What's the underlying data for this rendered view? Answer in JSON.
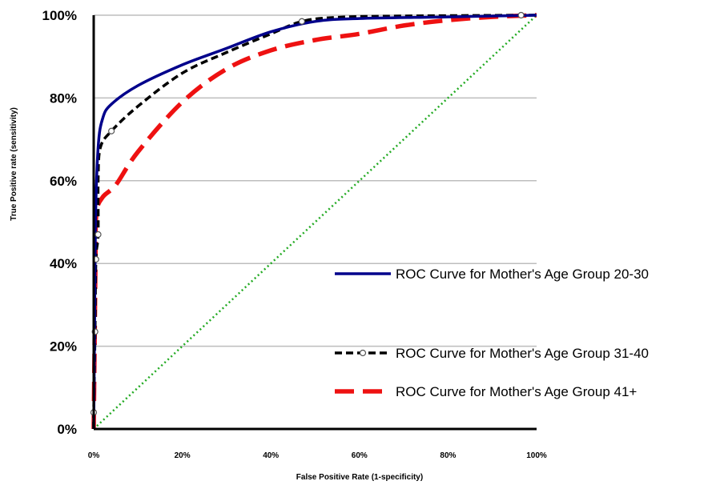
{
  "chart_data": {
    "type": "line",
    "xlabel": "False Positive Rate (1-specificity)",
    "ylabel": "True Positive rate (sensitivity)",
    "xlim": [
      0,
      100
    ],
    "ylim": [
      0,
      100
    ],
    "x_ticks": [
      "0%",
      "20%",
      "40%",
      "60%",
      "80%",
      "100%"
    ],
    "y_ticks": [
      "0%",
      "20%",
      "40%",
      "60%",
      "80%",
      "100%"
    ],
    "grid": "horizontal",
    "legend_position": "right",
    "series": [
      {
        "name": "ROC Curve for Mother's Age Group 20-30",
        "color": "#00008B",
        "style": "solid",
        "points": [
          [
            0,
            0
          ],
          [
            0.2,
            25
          ],
          [
            0.4,
            50
          ],
          [
            1,
            68
          ],
          [
            2,
            75
          ],
          [
            4,
            78.5
          ],
          [
            10,
            83
          ],
          [
            20,
            88
          ],
          [
            30,
            92
          ],
          [
            40,
            96
          ],
          [
            50,
            98.5
          ],
          [
            60,
            99.2
          ],
          [
            80,
            99.6
          ],
          [
            100,
            100
          ]
        ]
      },
      {
        "name": "ROC Curve for Mother's Age Group 31-40",
        "color": "#000000",
        "style": "short-dash",
        "markers": [
          [
            0,
            4
          ],
          [
            0.3,
            23.5
          ],
          [
            0.5,
            41
          ],
          [
            1,
            47
          ],
          [
            4,
            72
          ],
          [
            47,
            98.5
          ],
          [
            96.5,
            100
          ]
        ],
        "points": [
          [
            0,
            0
          ],
          [
            0,
            4
          ],
          [
            0.3,
            23.5
          ],
          [
            0.5,
            41
          ],
          [
            1,
            47
          ],
          [
            1,
            60
          ],
          [
            1.5,
            68
          ],
          [
            4,
            72
          ],
          [
            10,
            78
          ],
          [
            20,
            86
          ],
          [
            30,
            91
          ],
          [
            40,
            95.5
          ],
          [
            47,
            98.5
          ],
          [
            55,
            99.5
          ],
          [
            70,
            99.8
          ],
          [
            96.5,
            100
          ],
          [
            100,
            100
          ]
        ]
      },
      {
        "name": "ROC Curve for Mother's Age Group 41+",
        "color": "#EE1111",
        "style": "long-dash",
        "points": [
          [
            0,
            0
          ],
          [
            0.2,
            20
          ],
          [
            0.4,
            40
          ],
          [
            0.6,
            52
          ],
          [
            2,
            56
          ],
          [
            5,
            59
          ],
          [
            10,
            67
          ],
          [
            20,
            79
          ],
          [
            30,
            87
          ],
          [
            40,
            91.5
          ],
          [
            50,
            94
          ],
          [
            60,
            95.5
          ],
          [
            70,
            97.5
          ],
          [
            80,
            98.8
          ],
          [
            90,
            99.6
          ],
          [
            100,
            100
          ]
        ]
      },
      {
        "name": "",
        "color": "#22AA22",
        "style": "dotted",
        "points": [
          [
            0,
            0
          ],
          [
            100,
            100
          ]
        ]
      }
    ]
  }
}
